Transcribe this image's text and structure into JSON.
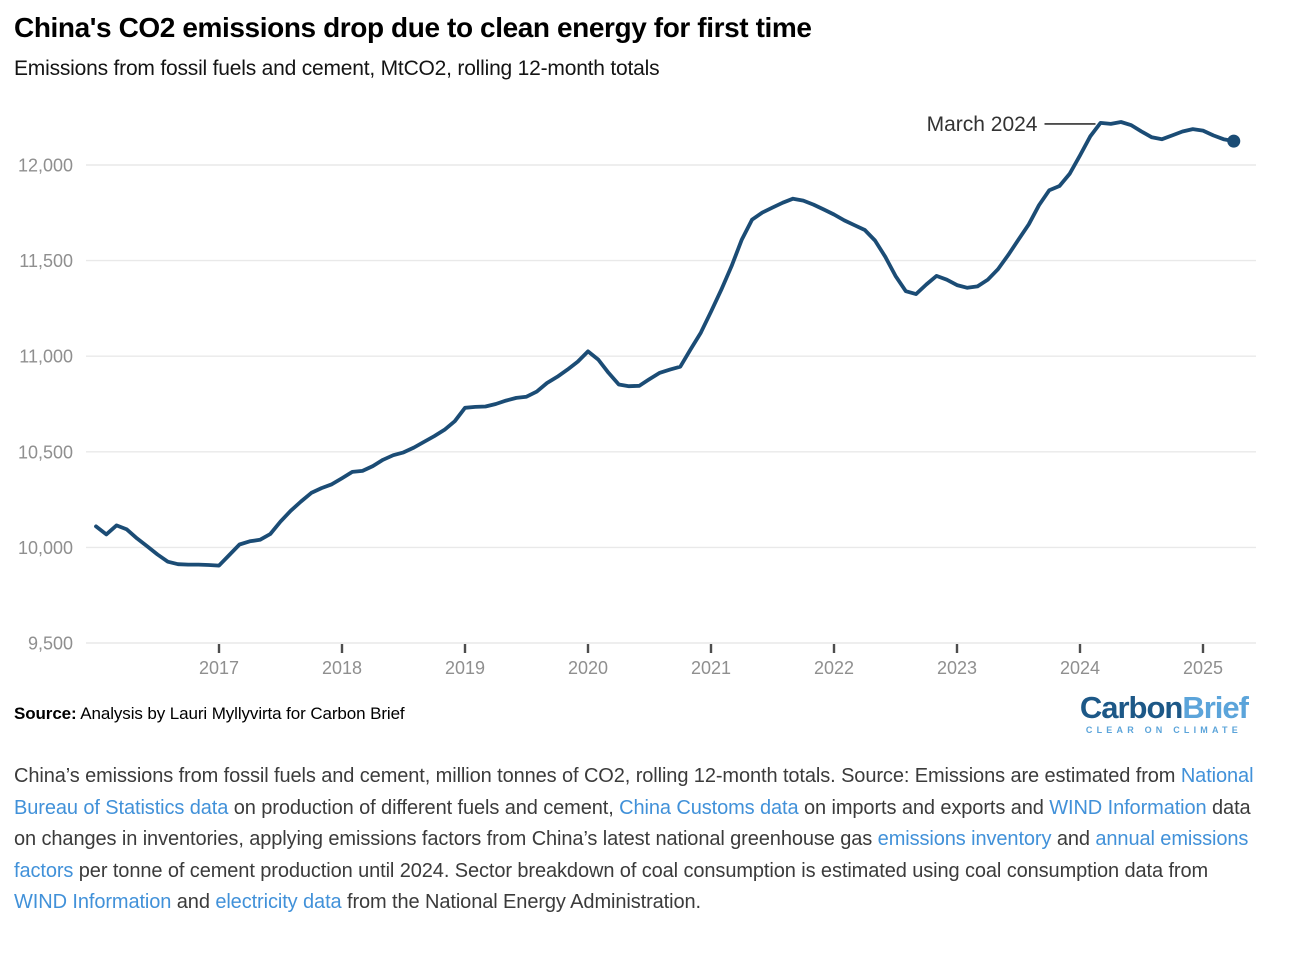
{
  "header": {
    "title": "China's CO2 emissions drop due to clean energy for first time",
    "subtitle": "Emissions from fossil fuels and cement, MtCO2, rolling 12-month totals"
  },
  "chart_data": {
    "type": "line",
    "title": "China's CO2 emissions drop due to clean energy for first time",
    "subtitle": "Emissions from fossil fuels and cement, MtCO2, rolling 12-month totals",
    "unit": "MtCO2",
    "start_month": "2016-01",
    "end_month": "2025-04",
    "frequency": "monthly",
    "values": [
      10110,
      10068,
      10115,
      10094,
      10047,
      10005,
      9963,
      9925,
      9912,
      9910,
      9910,
      9908,
      9905,
      9960,
      10015,
      10032,
      10040,
      10070,
      10135,
      10192,
      10240,
      10285,
      10310,
      10330,
      10362,
      10395,
      10400,
      10425,
      10458,
      10482,
      10497,
      10522,
      10552,
      10582,
      10615,
      10660,
      10730,
      10735,
      10737,
      10750,
      10768,
      10782,
      10788,
      10815,
      10860,
      10892,
      10930,
      10972,
      11025,
      10982,
      10913,
      10852,
      10843,
      10845,
      10880,
      10913,
      10930,
      10945,
      11035,
      11123,
      11233,
      11348,
      11470,
      11610,
      11714,
      11751,
      11777,
      11803,
      11824,
      11814,
      11793,
      11767,
      11741,
      11710,
      11685,
      11660,
      11605,
      11520,
      11420,
      11340,
      11325,
      11375,
      11420,
      11400,
      11372,
      11358,
      11365,
      11400,
      11455,
      11530,
      11610,
      11690,
      11790,
      11868,
      11890,
      11955,
      12050,
      12150,
      12220,
      12215,
      12225,
      12208,
      12175,
      12145,
      12135,
      12155,
      12175,
      12188,
      12180,
      12155,
      12135,
      12125
    ],
    "annotation": {
      "label": "March 2024",
      "month": "2024-03",
      "value": 12220
    },
    "yticks": [
      9500,
      10000,
      10500,
      11000,
      11500,
      12000
    ],
    "ytick_labels": [
      "9,500",
      "10,000",
      "10,500",
      "11,000",
      "11,500",
      "12,000"
    ],
    "xticks": [
      2017,
      2018,
      2019,
      2020,
      2021,
      2022,
      2023,
      2024,
      2025
    ],
    "ylim": [
      9500,
      12250
    ],
    "grid": "horizontal-only",
    "legend": "none",
    "line_color": "#1b4c75",
    "last_point_marker": true
  },
  "footer": {
    "source_label": "Source:",
    "source_text": " Analysis by Lauri Myllyvirta for Carbon Brief",
    "logo": {
      "part1": "Carbon",
      "part2": "Brief",
      "tagline": "CLEAR ON CLIMATE"
    }
  },
  "caption": {
    "segments": [
      {
        "text": "China’s emissions from fossil fuels and cement, million tonnes of CO2, rolling 12-month totals. Source: Emissions are estimated from ",
        "link": false
      },
      {
        "text": "National Bureau of Statistics data",
        "link": true
      },
      {
        "text": " on production of different fuels and cement, ",
        "link": false
      },
      {
        "text": "China Customs data",
        "link": true
      },
      {
        "text": " on imports and exports and ",
        "link": false
      },
      {
        "text": "WIND Information",
        "link": true
      },
      {
        "text": " data on changes in inventories, applying emissions factors from China’s latest national greenhouse gas ",
        "link": false
      },
      {
        "text": "emissions inventory",
        "link": true
      },
      {
        "text": " and ",
        "link": false
      },
      {
        "text": "annual emissions factors",
        "link": true
      },
      {
        "text": " per tonne of cement production until 2024. Sector breakdown of coal consumption is estimated using coal consumption data from ",
        "link": false
      },
      {
        "text": "WIND Information",
        "link": true
      },
      {
        "text": " and ",
        "link": false
      },
      {
        "text": "electricity data",
        "link": true
      },
      {
        "text": " from the National Energy Administration.",
        "link": false
      }
    ]
  },
  "colors": {
    "line": "#1b4c75",
    "grid": "#e9e9e9",
    "axis_text": "#8f8f8f",
    "tick_mark": "#4d4d4d",
    "annotation_text": "#333333",
    "link": "#4191d9",
    "logo_navy": "#1d5887",
    "logo_blue": "#5ba4da",
    "caption_text": "#3b3b3b"
  }
}
